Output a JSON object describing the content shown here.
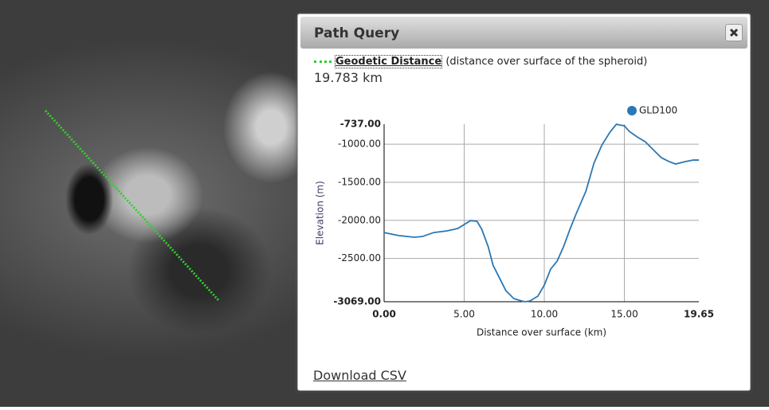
{
  "dialog": {
    "title": "Path Query",
    "measure_label": "Geodetic Distance",
    "measure_note": "(distance over surface of the spheroid)",
    "distance": "19.783 km",
    "download": "Download CSV"
  },
  "chart_data": {
    "type": "line",
    "x": [
      0,
      0.9,
      1.9,
      2.4,
      3.1,
      3.9,
      4.6,
      5.4,
      5.8,
      6.1,
      6.5,
      6.8,
      7.1,
      7.6,
      8.1,
      8.6,
      8.8,
      9.1,
      9.6,
      10.0,
      10.4,
      10.8,
      11.2,
      11.6,
      12.0,
      12.6,
      13.1,
      13.6,
      14.1,
      14.5,
      14.7,
      15.0,
      15.3,
      15.8,
      16.3,
      16.8,
      17.3,
      17.8,
      18.2,
      18.8,
      19.3,
      19.65
    ],
    "series": [
      {
        "name": "GLD100",
        "color": "#2a78b5",
        "values": [
          -2160,
          -2200,
          -2222,
          -2212,
          -2160,
          -2140,
          -2107,
          -2003,
          -2013,
          -2118,
          -2348,
          -2588,
          -2714,
          -2923,
          -3028,
          -3060,
          -3069,
          -3059,
          -2996,
          -2850,
          -2640,
          -2536,
          -2348,
          -2118,
          -1909,
          -1616,
          -1250,
          -1009,
          -842,
          -737,
          -747,
          -758,
          -831,
          -904,
          -967,
          -1072,
          -1176,
          -1229,
          -1260,
          -1229,
          -1208,
          -1208
        ]
      }
    ],
    "xlim": [
      0,
      19.65
    ],
    "ylim": [
      -3069,
      -737
    ],
    "xticks": [
      {
        "value": 0,
        "label": "0.00"
      },
      {
        "value": 5,
        "label": "5.00"
      },
      {
        "value": 10,
        "label": "10.00"
      },
      {
        "value": 15,
        "label": "15.00"
      },
      {
        "value": 19.65,
        "label": "19.65"
      }
    ],
    "yticks": [
      {
        "value": -737,
        "label": "-737.00"
      },
      {
        "value": -1000,
        "label": "-1000.00"
      },
      {
        "value": -1500,
        "label": "-1500.00"
      },
      {
        "value": -2000,
        "label": "-2000.00"
      },
      {
        "value": -2500,
        "label": "-2500.00"
      },
      {
        "value": -3069,
        "label": "-3069.00"
      }
    ],
    "xlabel": "Distance over surface (km)",
    "ylabel": "Elevation (m)",
    "grid": true,
    "legend": "top-right"
  }
}
